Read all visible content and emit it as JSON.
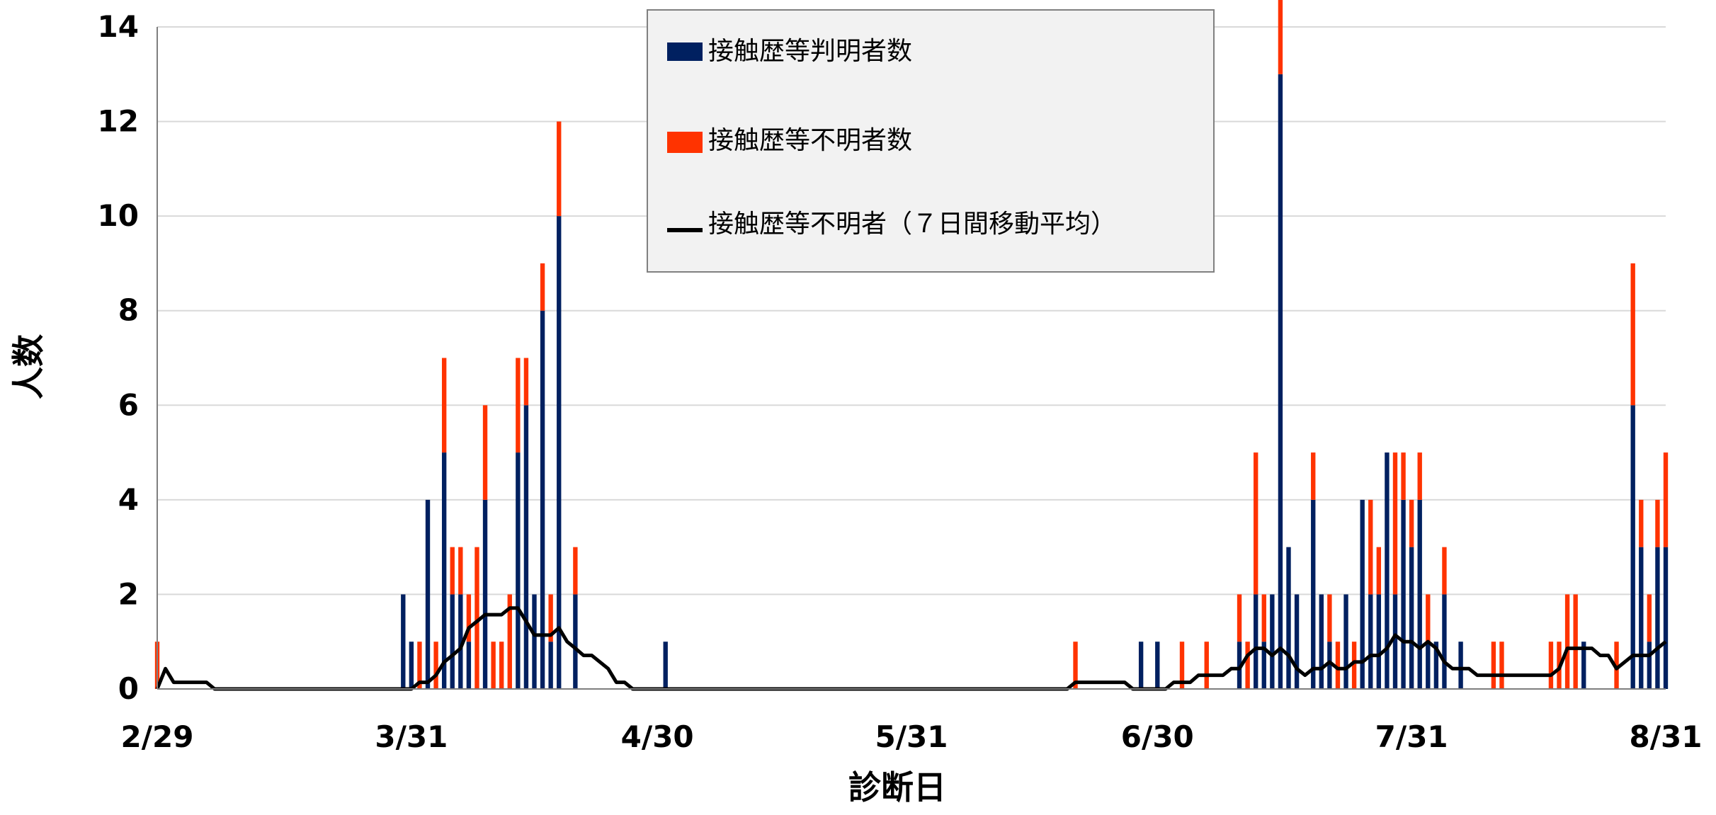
{
  "chart_data": {
    "type": "bar",
    "stacked": true,
    "xlabel": "診断日",
    "ylabel": "人数",
    "ylim": [
      0,
      14
    ],
    "yticks": [
      0,
      2,
      4,
      6,
      8,
      10,
      12,
      14
    ],
    "grid": true,
    "legend_position": "top-center",
    "x_range": [
      "2020-02-29",
      "2020-08-31"
    ],
    "x_tick_labels": [
      {
        "date": "2020-02-29",
        "label": "2/29"
      },
      {
        "date": "2020-03-31",
        "label": "3/31"
      },
      {
        "date": "2020-04-30",
        "label": "4/30"
      },
      {
        "date": "2020-05-31",
        "label": "5/31"
      },
      {
        "date": "2020-06-30",
        "label": "6/30"
      },
      {
        "date": "2020-07-31",
        "label": "7/31"
      },
      {
        "date": "2020-08-31",
        "label": "8/31"
      }
    ],
    "series": [
      {
        "name": "接触歴等判明者数",
        "color": "#002060",
        "kind": "bar",
        "points": [
          [
            "2020-03-30",
            2
          ],
          [
            "2020-03-31",
            1
          ],
          [
            "2020-04-02",
            4
          ],
          [
            "2020-04-04",
            5
          ],
          [
            "2020-04-05",
            2
          ],
          [
            "2020-04-06",
            2
          ],
          [
            "2020-04-07",
            1
          ],
          [
            "2020-04-09",
            4
          ],
          [
            "2020-04-13",
            5
          ],
          [
            "2020-04-14",
            6
          ],
          [
            "2020-04-15",
            2
          ],
          [
            "2020-04-16",
            8
          ],
          [
            "2020-04-17",
            1
          ],
          [
            "2020-04-18",
            10
          ],
          [
            "2020-04-20",
            2
          ],
          [
            "2020-05-01",
            1
          ],
          [
            "2020-06-28",
            1
          ],
          [
            "2020-06-30",
            1
          ],
          [
            "2020-07-10",
            1
          ],
          [
            "2020-07-12",
            2
          ],
          [
            "2020-07-13",
            1
          ],
          [
            "2020-07-14",
            2
          ],
          [
            "2020-07-15",
            13
          ],
          [
            "2020-07-16",
            3
          ],
          [
            "2020-07-17",
            2
          ],
          [
            "2020-07-19",
            4
          ],
          [
            "2020-07-20",
            2
          ],
          [
            "2020-07-21",
            1
          ],
          [
            "2020-07-23",
            2
          ],
          [
            "2020-07-25",
            4
          ],
          [
            "2020-07-26",
            2
          ],
          [
            "2020-07-27",
            2
          ],
          [
            "2020-07-28",
            5
          ],
          [
            "2020-07-29",
            2
          ],
          [
            "2020-07-30",
            4
          ],
          [
            "2020-07-31",
            3
          ],
          [
            "2020-08-01",
            4
          ],
          [
            "2020-08-02",
            1
          ],
          [
            "2020-08-03",
            1
          ],
          [
            "2020-08-04",
            2
          ],
          [
            "2020-08-06",
            1
          ],
          [
            "2020-08-21",
            1
          ],
          [
            "2020-08-27",
            6
          ],
          [
            "2020-08-28",
            3
          ],
          [
            "2020-08-29",
            1
          ],
          [
            "2020-08-30",
            3
          ],
          [
            "2020-08-31",
            3
          ]
        ]
      },
      {
        "name": "接触歴等不明者数",
        "color": "#FF3300",
        "kind": "bar",
        "points": [
          [
            "2020-02-29",
            1
          ],
          [
            "2020-04-01",
            1
          ],
          [
            "2020-04-03",
            1
          ],
          [
            "2020-04-04",
            2
          ],
          [
            "2020-04-05",
            1
          ],
          [
            "2020-04-06",
            1
          ],
          [
            "2020-04-07",
            1
          ],
          [
            "2020-04-08",
            3
          ],
          [
            "2020-04-09",
            2
          ],
          [
            "2020-04-10",
            1
          ],
          [
            "2020-04-11",
            1
          ],
          [
            "2020-04-12",
            2
          ],
          [
            "2020-04-13",
            2
          ],
          [
            "2020-04-14",
            1
          ],
          [
            "2020-04-16",
            1
          ],
          [
            "2020-04-17",
            1
          ],
          [
            "2020-04-18",
            2
          ],
          [
            "2020-04-20",
            1
          ],
          [
            "2020-06-20",
            1
          ],
          [
            "2020-07-03",
            1
          ],
          [
            "2020-07-06",
            1
          ],
          [
            "2020-07-10",
            1
          ],
          [
            "2020-07-11",
            1
          ],
          [
            "2020-07-12",
            3
          ],
          [
            "2020-07-13",
            1
          ],
          [
            "2020-07-15",
            2
          ],
          [
            "2020-07-19",
            1
          ],
          [
            "2020-07-21",
            1
          ],
          [
            "2020-07-22",
            1
          ],
          [
            "2020-07-24",
            1
          ],
          [
            "2020-07-26",
            2
          ],
          [
            "2020-07-27",
            1
          ],
          [
            "2020-07-29",
            3
          ],
          [
            "2020-07-30",
            1
          ],
          [
            "2020-07-31",
            1
          ],
          [
            "2020-08-01",
            1
          ],
          [
            "2020-08-02",
            1
          ],
          [
            "2020-08-04",
            1
          ],
          [
            "2020-08-10",
            1
          ],
          [
            "2020-08-11",
            1
          ],
          [
            "2020-08-17",
            1
          ],
          [
            "2020-08-18",
            1
          ],
          [
            "2020-08-19",
            2
          ],
          [
            "2020-08-20",
            2
          ],
          [
            "2020-08-25",
            1
          ],
          [
            "2020-08-27",
            3
          ],
          [
            "2020-08-28",
            1
          ],
          [
            "2020-08-29",
            1
          ],
          [
            "2020-08-30",
            1
          ],
          [
            "2020-08-31",
            2
          ]
        ]
      },
      {
        "name": "接触歴等不明者（７日間移動平均）",
        "color": "#000000",
        "kind": "line",
        "points": [
          [
            "2020-02-29",
            0
          ],
          [
            "2020-03-01",
            0.43
          ],
          [
            "2020-03-02",
            0.14
          ],
          [
            "2020-03-06",
            0.14
          ],
          [
            "2020-03-07",
            0
          ],
          [
            "2020-03-31",
            0
          ],
          [
            "2020-04-01",
            0.14
          ],
          [
            "2020-04-02",
            0.14
          ],
          [
            "2020-04-03",
            0.29
          ],
          [
            "2020-04-04",
            0.57
          ],
          [
            "2020-04-05",
            0.71
          ],
          [
            "2020-04-06",
            0.86
          ],
          [
            "2020-04-07",
            1.29
          ],
          [
            "2020-04-08",
            1.43
          ],
          [
            "2020-04-09",
            1.57
          ],
          [
            "2020-04-11",
            1.57
          ],
          [
            "2020-04-12",
            1.71
          ],
          [
            "2020-04-13",
            1.71
          ],
          [
            "2020-04-14",
            1.43
          ],
          [
            "2020-04-15",
            1.14
          ],
          [
            "2020-04-16",
            1.14
          ],
          [
            "2020-04-17",
            1.14
          ],
          [
            "2020-04-18",
            1.29
          ],
          [
            "2020-04-19",
            1.0
          ],
          [
            "2020-04-20",
            0.86
          ],
          [
            "2020-04-21",
            0.71
          ],
          [
            "2020-04-22",
            0.71
          ],
          [
            "2020-04-23",
            0.57
          ],
          [
            "2020-04-24",
            0.43
          ],
          [
            "2020-04-25",
            0.14
          ],
          [
            "2020-04-26",
            0.14
          ],
          [
            "2020-04-27",
            0
          ],
          [
            "2020-06-19",
            0
          ],
          [
            "2020-06-20",
            0.14
          ],
          [
            "2020-06-26",
            0.14
          ],
          [
            "2020-06-27",
            0
          ],
          [
            "2020-07-01",
            0
          ],
          [
            "2020-07-02",
            0.14
          ],
          [
            "2020-07-04",
            0.14
          ],
          [
            "2020-07-05",
            0.29
          ],
          [
            "2020-07-08",
            0.29
          ],
          [
            "2020-07-09",
            0.43
          ],
          [
            "2020-07-10",
            0.43
          ],
          [
            "2020-07-11",
            0.71
          ],
          [
            "2020-07-12",
            0.86
          ],
          [
            "2020-07-13",
            0.86
          ],
          [
            "2020-07-14",
            0.71
          ],
          [
            "2020-07-15",
            0.86
          ],
          [
            "2020-07-16",
            0.71
          ],
          [
            "2020-07-17",
            0.43
          ],
          [
            "2020-07-18",
            0.29
          ],
          [
            "2020-07-19",
            0.43
          ],
          [
            "2020-07-20",
            0.43
          ],
          [
            "2020-07-21",
            0.57
          ],
          [
            "2020-07-22",
            0.43
          ],
          [
            "2020-07-23",
            0.43
          ],
          [
            "2020-07-24",
            0.57
          ],
          [
            "2020-07-25",
            0.57
          ],
          [
            "2020-07-26",
            0.71
          ],
          [
            "2020-07-27",
            0.71
          ],
          [
            "2020-07-28",
            0.86
          ],
          [
            "2020-07-29",
            1.14
          ],
          [
            "2020-07-30",
            1.0
          ],
          [
            "2020-07-31",
            1.0
          ],
          [
            "2020-08-01",
            0.86
          ],
          [
            "2020-08-02",
            1.0
          ],
          [
            "2020-08-03",
            0.86
          ],
          [
            "2020-08-04",
            0.57
          ],
          [
            "2020-08-05",
            0.43
          ],
          [
            "2020-08-07",
            0.43
          ],
          [
            "2020-08-08",
            0.29
          ],
          [
            "2020-08-16",
            0.29
          ],
          [
            "2020-08-17",
            0.29
          ],
          [
            "2020-08-18",
            0.43
          ],
          [
            "2020-08-19",
            0.86
          ],
          [
            "2020-08-22",
            0.86
          ],
          [
            "2020-08-23",
            0.71
          ],
          [
            "2020-08-24",
            0.71
          ],
          [
            "2020-08-25",
            0.43
          ],
          [
            "2020-08-26",
            0.57
          ],
          [
            "2020-08-27",
            0.71
          ],
          [
            "2020-08-29",
            0.71
          ],
          [
            "2020-08-30",
            0.86
          ],
          [
            "2020-08-31",
            1.0
          ]
        ]
      }
    ]
  }
}
